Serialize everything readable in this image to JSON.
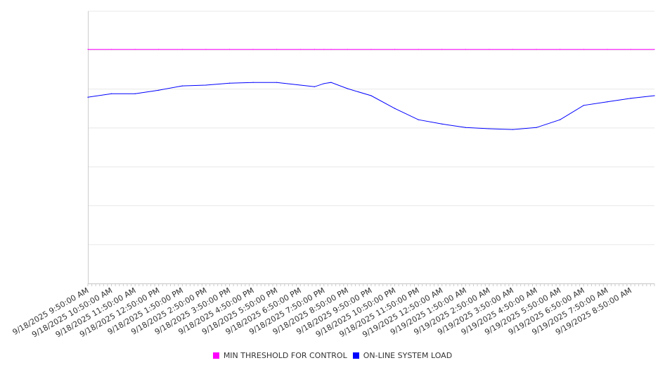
{
  "chart_data": {
    "type": "line",
    "title": "",
    "xlabel": "",
    "ylabel": "",
    "ylim": [
      0,
      7
    ],
    "grid": true,
    "legend_position": "bottom",
    "x_tick_labels": [
      "9/18/2025 9:50:00 AM",
      "9/18/2025 10:50:00 AM",
      "9/18/2025 11:50:00 AM",
      "9/18/2025 12:50:00 PM",
      "9/18/2025 1:50:00 PM",
      "9/18/2025 2:50:00 PM",
      "9/18/2025 3:50:00 PM",
      "9/18/2025 4:50:00 PM",
      "9/18/2025 5:50:00 PM",
      "9/18/2025 6:50:00 PM",
      "9/18/2025 7:50:00 PM",
      "9/18/2025 8:50:00 PM",
      "9/18/2025 9:50:00 PM",
      "9/18/2025 10:50:00 PM",
      "9/18/2025 11:50:00 PM",
      "9/19/2025 12:50:00 AM",
      "9/19/2025 1:50:00 AM",
      "9/19/2025 2:50:00 AM",
      "9/19/2025 3:50:00 AM",
      "9/19/2025 4:50:00 AM",
      "9/19/2025 5:50:00 AM",
      "9/19/2025 6:50:00 AM",
      "9/19/2025 7:50:00 AM",
      "9/19/2025 8:50:00 AM"
    ],
    "x_hours": [
      0,
      1,
      2,
      3,
      4,
      5,
      6,
      7,
      8,
      9,
      9.6,
      10,
      10.3,
      11,
      12,
      13,
      14,
      15,
      16,
      17,
      18,
      19,
      20,
      21,
      22,
      23,
      24
    ],
    "series": [
      {
        "name": "MIN THRESHOLD FOR CONTROL",
        "color": "#ff00ff",
        "values": [
          6.02,
          6.02,
          6.02,
          6.02,
          6.02,
          6.02,
          6.02,
          6.02,
          6.02,
          6.02,
          6.02,
          6.02,
          6.02,
          6.02,
          6.02,
          6.02,
          6.02,
          6.02,
          6.02,
          6.02,
          6.02,
          6.02,
          6.02,
          6.02,
          6.02,
          6.02,
          6.02
        ]
      },
      {
        "name": "ON-LINE SYSTEM LOAD",
        "color": "#0000ff",
        "values": [
          4.79,
          4.88,
          4.88,
          4.97,
          5.08,
          5.1,
          5.15,
          5.17,
          5.17,
          5.1,
          5.06,
          5.14,
          5.17,
          5.01,
          4.83,
          4.5,
          4.21,
          4.1,
          4.01,
          3.98,
          3.96,
          4.01,
          4.21,
          4.58,
          4.67,
          4.76,
          4.83
        ]
      }
    ]
  }
}
